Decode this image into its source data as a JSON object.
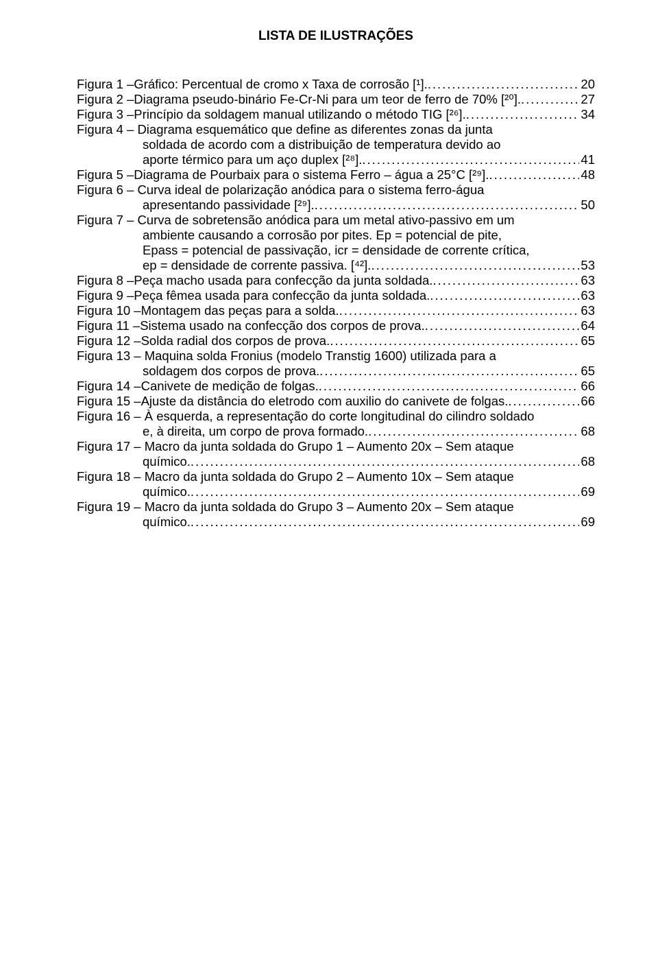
{
  "title": "LISTA DE ILUSTRAÇÕES",
  "entries": [
    {
      "lines": [
        {
          "type": "last",
          "label": "Figura 1 – ",
          "text": "Gráfico: Percentual de cromo x Taxa de corrosão [¹]. ",
          "page": "20"
        }
      ]
    },
    {
      "lines": [
        {
          "type": "last",
          "label": "Figura 2 – ",
          "text": "Diagrama pseudo-binário Fe-Cr-Ni para um teor de ferro de 70% [²⁰]. ",
          "page": "27"
        }
      ]
    },
    {
      "lines": [
        {
          "type": "last",
          "label": "Figura 3 – ",
          "text": "Princípio da soldagem manual utilizando o método TIG [²⁶]. ",
          "page": "34"
        }
      ]
    },
    {
      "lines": [
        {
          "type": "plain",
          "label": "Figura 4 – ",
          "text": "Diagrama esquemático que define as diferentes zonas da junta"
        },
        {
          "type": "plain-indent",
          "text": "soldada de acordo com a distribuição de temperatura devido ao"
        },
        {
          "type": "cont-last",
          "text": "aporte térmico para um aço duplex [²⁸]. ",
          "page": "41"
        }
      ]
    },
    {
      "lines": [
        {
          "type": "last",
          "label": "Figura 5 – ",
          "text": "Diagrama de Pourbaix para o sistema Ferro – água a 25°C [²⁹]. ",
          "page": "48"
        }
      ]
    },
    {
      "lines": [
        {
          "type": "plain",
          "label": "Figura 6 – ",
          "text": "Curva ideal de polarização anódica para o sistema ferro-água"
        },
        {
          "type": "cont-last",
          "text": "apresentando passividade [²⁹]. ",
          "page": "50"
        }
      ]
    },
    {
      "lines": [
        {
          "type": "plain",
          "label": "Figura 7 – ",
          "text": "Curva de sobretensão anódica para um metal ativo-passivo em um"
        },
        {
          "type": "plain-indent",
          "text": "ambiente causando a corrosão por pites. Ep = potencial de pite,"
        },
        {
          "type": "plain-indent",
          "text": "Epass = potencial de passivação, icr = densidade de corrente crítica,"
        },
        {
          "type": "cont-last",
          "text": "ep = densidade de corrente passiva. [⁴²]. ",
          "page": "53"
        }
      ]
    },
    {
      "lines": [
        {
          "type": "last",
          "label": "Figura 8 – ",
          "text": "Peça macho usada para confecção da junta soldada. ",
          "page": "63"
        }
      ]
    },
    {
      "lines": [
        {
          "type": "last",
          "label": "Figura 9 – ",
          "text": "Peça fêmea usada para confecção da junta soldada. ",
          "page": "63"
        }
      ]
    },
    {
      "lines": [
        {
          "type": "last",
          "label": "Figura 10 – ",
          "text": "Montagem das peças para a solda. ",
          "page": "63"
        }
      ]
    },
    {
      "lines": [
        {
          "type": "last",
          "label": "Figura 11 – ",
          "text": "Sistema usado na confecção dos corpos de prova. ",
          "page": "64"
        }
      ]
    },
    {
      "lines": [
        {
          "type": "last",
          "label": "Figura 12 – ",
          "text": "Solda radial dos corpos de prova. ",
          "page": "65"
        }
      ]
    },
    {
      "lines": [
        {
          "type": "plain",
          "label": "Figura 13 – ",
          "text": "Maquina solda Fronius (modelo Transtig 1600) utilizada para a"
        },
        {
          "type": "cont-last",
          "text": "soldagem dos corpos de prova. ",
          "page": "65"
        }
      ]
    },
    {
      "lines": [
        {
          "type": "last",
          "label": "Figura 14 – ",
          "text": "Canivete de medição de folgas. ",
          "page": "66"
        }
      ]
    },
    {
      "lines": [
        {
          "type": "last",
          "label": "Figura 15 – ",
          "text": "Ajuste da distância do eletrodo com auxilio do canivete de folgas. ",
          "page": "66"
        }
      ]
    },
    {
      "lines": [
        {
          "type": "plain",
          "label": "Figura 16 – ",
          "text": "À esquerda, a representação do corte longitudinal do cilindro soldado"
        },
        {
          "type": "cont-last",
          "text": "e, à direita, um corpo de prova formado. ",
          "page": "68"
        }
      ]
    },
    {
      "lines": [
        {
          "type": "plain",
          "label": "Figura 17 – ",
          "text": "Macro da junta soldada do Grupo 1 – Aumento 20x – Sem ataque"
        },
        {
          "type": "cont-last",
          "text": "químico. ",
          "page": "68"
        }
      ]
    },
    {
      "lines": [
        {
          "type": "plain",
          "label": "Figura 18 – ",
          "text": "Macro da junta soldada do Grupo 2 – Aumento 10x – Sem ataque"
        },
        {
          "type": "cont-last",
          "text": "químico. ",
          "page": "69"
        }
      ]
    },
    {
      "lines": [
        {
          "type": "plain",
          "label": "Figura 19 – ",
          "text": "Macro da junta soldada do Grupo 3 – Aumento 20x – Sem ataque"
        },
        {
          "type": "cont-last",
          "text": "químico. ",
          "page": "69"
        }
      ]
    }
  ]
}
